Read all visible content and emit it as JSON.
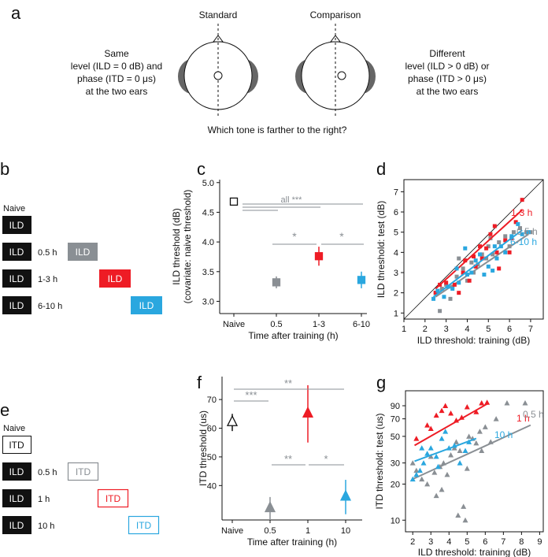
{
  "colors": {
    "naive": "#111111",
    "ear": "#666666",
    "gray": "#8a8f94",
    "red": "#ee1c25",
    "blue": "#2aa7df"
  },
  "panel_a": {
    "letter": "a",
    "standard_label": "Standard",
    "comparison_label": "Comparison",
    "left_text": [
      "Same",
      "level (ILD = 0 dB) and",
      "phase (ITD = 0 μs)",
      "at the two ears"
    ],
    "right_text": [
      "Different",
      "level (ILD > 0 dB) or",
      "phase (ITD > 0 μs)",
      "at the two ears"
    ],
    "question": "Which tone is farther to the right?"
  },
  "panel_b": {
    "letter": "b",
    "naive_label": "Naive",
    "rows": [
      {
        "box": "ILD",
        "time": "0.5 h",
        "test": "ILD",
        "test_color": "gray"
      },
      {
        "box": "ILD",
        "time": "1-3 h",
        "test": "ILD",
        "test_color": "red"
      },
      {
        "box": "ILD",
        "time": "6-10 h",
        "test": "ILD",
        "test_color": "blue"
      }
    ],
    "naive_box": "ILD"
  },
  "panel_e": {
    "letter": "e",
    "naive_label": "Naive",
    "naive_box": "ITD",
    "rows": [
      {
        "box": "ILD",
        "time": "0.5 h",
        "test": "ITD",
        "test_color": "gray"
      },
      {
        "box": "ILD",
        "time": "1 h",
        "test": "ITD",
        "test_color": "red"
      },
      {
        "box": "ILD",
        "time": "10 h",
        "test": "ITD",
        "test_color": "blue"
      }
    ]
  },
  "chart_data": [
    {
      "panel": "c",
      "type": "scatter",
      "ylabel": "ILD threshold (dB)",
      "ylabel2": "(covariate:  naive threshold)",
      "xlabel": "Time after training (h)",
      "categories": [
        "Naive",
        "0.5",
        "1-3",
        "6-10"
      ],
      "yticks": [
        "3.0",
        "3.5",
        "4.0",
        "4.5",
        "5.0"
      ],
      "ylim": [
        2.9,
        5.05
      ],
      "points": [
        {
          "cat": "Naive",
          "y": 4.68,
          "err": 0.0,
          "color": "naive",
          "filled": false
        },
        {
          "cat": "0.5",
          "y": 3.32,
          "err": 0.1,
          "color": "gray",
          "filled": true
        },
        {
          "cat": "1-3",
          "y": 3.76,
          "err": 0.16,
          "color": "red",
          "filled": true
        },
        {
          "cat": "6-10",
          "y": 3.36,
          "err": 0.14,
          "color": "blue",
          "filled": true
        }
      ],
      "annotations": {
        "all": "all ***",
        "star1": "*",
        "star2": "*"
      }
    },
    {
      "panel": "d",
      "type": "scatter",
      "xlabel": "ILD threshold: training (dB)",
      "ylabel": "ILD threshold:  test (dB)",
      "xticks": [
        "1",
        "2",
        "3",
        "4",
        "5",
        "6",
        "7"
      ],
      "yticks": [
        "1",
        "2",
        "3",
        "4",
        "5",
        "6",
        "7"
      ],
      "xlim": [
        1,
        7.6
      ],
      "ylim": [
        0.7,
        7.6
      ],
      "series": [
        {
          "name": "0.5 h",
          "label": "0.5 h",
          "color": "gray",
          "points": [
            [
              2.7,
              1.1
            ],
            [
              2.5,
              2.0
            ],
            [
              2.8,
              2.2
            ],
            [
              3.0,
              2.4
            ],
            [
              3.2,
              1.7
            ],
            [
              3.3,
              2.3
            ],
            [
              3.5,
              2.8
            ],
            [
              3.8,
              3.2
            ],
            [
              4.0,
              2.6
            ],
            [
              4.2,
              3.5
            ],
            [
              4.3,
              3.0
            ],
            [
              4.5,
              3.4
            ],
            [
              4.7,
              3.9
            ],
            [
              4.9,
              3.7
            ],
            [
              5.0,
              4.3
            ],
            [
              5.2,
              3.9
            ],
            [
              5.5,
              4.5
            ],
            [
              5.8,
              4.8
            ],
            [
              6.0,
              4.3
            ],
            [
              6.5,
              5.2
            ],
            [
              6.8,
              5.0
            ],
            [
              7.0,
              5.0
            ],
            [
              3.6,
              3.7
            ],
            [
              5.1,
              4.7
            ],
            [
              6.2,
              5.0
            ]
          ],
          "fit": [
            [
              2.5,
              1.8
            ],
            [
              6.9,
              4.9
            ]
          ]
        },
        {
          "name": "1-3 h",
          "label": "1-3 h",
          "color": "red",
          "points": [
            [
              2.5,
              2.0
            ],
            [
              2.7,
              2.4
            ],
            [
              3.0,
              2.5
            ],
            [
              3.4,
              2.4
            ],
            [
              3.6,
              2.0
            ],
            [
              3.8,
              3.0
            ],
            [
              4.1,
              2.6
            ],
            [
              4.3,
              3.8
            ],
            [
              4.4,
              3.3
            ],
            [
              4.7,
              3.7
            ],
            [
              4.9,
              4.2
            ],
            [
              5.1,
              4.9
            ],
            [
              5.3,
              5.3
            ],
            [
              5.5,
              3.2
            ],
            [
              5.8,
              4.6
            ],
            [
              6.0,
              4.0
            ],
            [
              6.1,
              4.7
            ],
            [
              6.3,
              5.5
            ],
            [
              6.6,
              6.6
            ],
            [
              3.9,
              3.6
            ],
            [
              5.4,
              4.0
            ],
            [
              4.6,
              4.3
            ]
          ],
          "fit": [
            [
              2.5,
              2.2
            ],
            [
              6.6,
              6.1
            ]
          ]
        },
        {
          "name": "6-10 h",
          "label": "6-10 h",
          "color": "blue",
          "points": [
            [
              2.4,
              1.7
            ],
            [
              2.6,
              2.1
            ],
            [
              2.9,
              1.8
            ],
            [
              3.1,
              2.3
            ],
            [
              3.3,
              2.2
            ],
            [
              3.6,
              2.5
            ],
            [
              3.9,
              4.2
            ],
            [
              4.0,
              2.9
            ],
            [
              4.2,
              3.0
            ],
            [
              4.6,
              3.9
            ],
            [
              4.8,
              2.9
            ],
            [
              5.0,
              3.3
            ],
            [
              5.2,
              3.1
            ],
            [
              5.4,
              3.7
            ],
            [
              5.6,
              4.3
            ],
            [
              5.8,
              4.0
            ],
            [
              6.1,
              4.8
            ],
            [
              6.4,
              5.4
            ],
            [
              6.6,
              4.9
            ],
            [
              6.9,
              5.0
            ],
            [
              3.5,
              3.2
            ],
            [
              5.3,
              4.3
            ],
            [
              4.4,
              3.6
            ]
          ],
          "fit": [
            [
              2.4,
              1.8
            ],
            [
              6.6,
              5.1
            ]
          ]
        }
      ]
    },
    {
      "panel": "f",
      "type": "scatter",
      "ylabel": "ITD threshold (us)",
      "xlabel": "Time after training (h)",
      "categories": [
        "Naive",
        "0.5",
        "1",
        "10"
      ],
      "yticks": [
        "40",
        "50",
        "60",
        "70"
      ],
      "ylim": [
        28,
        78
      ],
      "points": [
        {
          "cat": "Naive",
          "y": 62,
          "err": 3,
          "color": "naive",
          "filled": false
        },
        {
          "cat": "0.5",
          "y": 32,
          "err": 4,
          "color": "gray",
          "filled": true
        },
        {
          "cat": "1",
          "y": 65,
          "err": 10,
          "color": "red",
          "filled": true
        },
        {
          "cat": "10",
          "y": 36,
          "err": 6,
          "color": "blue",
          "filled": true
        }
      ],
      "annotations": {
        "top": "**",
        "left": "***",
        "mid": "**",
        "right": "*"
      }
    },
    {
      "panel": "g",
      "type": "scatter",
      "xlabel": "ILD threshold: training (dB)",
      "ylabel": "ITD threshold: test (us)",
      "xticks": [
        "2",
        "3",
        "4",
        "5",
        "6",
        "7",
        "8",
        "9"
      ],
      "yticks": [
        "10",
        "20",
        "30",
        "50",
        "70",
        "90"
      ],
      "xlim": [
        1.6,
        9.2
      ],
      "ylim_log": [
        8,
        120
      ],
      "series": [
        {
          "name": "0.5 h",
          "label": "0.5 h",
          "color": "gray",
          "points": [
            [
              2.0,
              30
            ],
            [
              2.2,
              26
            ],
            [
              2.5,
              22
            ],
            [
              2.8,
              20
            ],
            [
              3.0,
              34
            ],
            [
              3.2,
              25
            ],
            [
              3.3,
              16
            ],
            [
              3.5,
              28
            ],
            [
              3.7,
              30
            ],
            [
              3.9,
              24
            ],
            [
              4.1,
              35
            ],
            [
              4.3,
              40
            ],
            [
              4.4,
              45
            ],
            [
              4.6,
              38
            ],
            [
              4.8,
              13
            ],
            [
              4.9,
              10
            ],
            [
              5.0,
              27
            ],
            [
              5.1,
              50
            ],
            [
              5.3,
              48
            ],
            [
              5.5,
              44
            ],
            [
              5.7,
              55
            ],
            [
              6.0,
              60
            ],
            [
              6.3,
              45
            ],
            [
              6.6,
              70
            ],
            [
              7.2,
              95
            ],
            [
              8.2,
              95
            ],
            [
              5.8,
              38
            ],
            [
              4.5,
              11
            ],
            [
              3.6,
              18
            ]
          ],
          "fit": [
            [
              2.0,
              22
            ],
            [
              8.5,
              62
            ]
          ]
        },
        {
          "name": "1 h",
          "label": "1 h",
          "color": "red",
          "points": [
            [
              2.2,
              48
            ],
            [
              2.8,
              62
            ],
            [
              3.3,
              75
            ],
            [
              3.6,
              82
            ],
            [
              3.8,
              90
            ],
            [
              4.1,
              78
            ],
            [
              4.4,
              68
            ],
            [
              4.7,
              72
            ],
            [
              5.0,
              88
            ],
            [
              5.5,
              80
            ],
            [
              5.8,
              95
            ],
            [
              6.1,
              96
            ],
            [
              3.0,
              58
            ]
          ],
          "fit": [
            [
              2.1,
              42
            ],
            [
              6.2,
              95
            ]
          ]
        },
        {
          "name": "10 h",
          "label": "10 h",
          "color": "blue",
          "points": [
            [
              2.0,
              22
            ],
            [
              2.2,
              24
            ],
            [
              2.4,
              26
            ],
            [
              2.6,
              30
            ],
            [
              2.8,
              36
            ],
            [
              3.0,
              40
            ],
            [
              3.3,
              34
            ],
            [
              3.6,
              48
            ],
            [
              3.8,
              55
            ],
            [
              4.0,
              40
            ],
            [
              4.3,
              42
            ],
            [
              4.6,
              30
            ],
            [
              4.9,
              38
            ],
            [
              5.1,
              45
            ],
            [
              3.4,
              28
            ],
            [
              2.5,
              40
            ]
          ],
          "fit": [
            [
              2.1,
              31
            ],
            [
              5.5,
              48
            ]
          ]
        }
      ]
    }
  ],
  "panel_letters": {
    "c": "c",
    "d": "d",
    "f": "f",
    "g": "g"
  }
}
